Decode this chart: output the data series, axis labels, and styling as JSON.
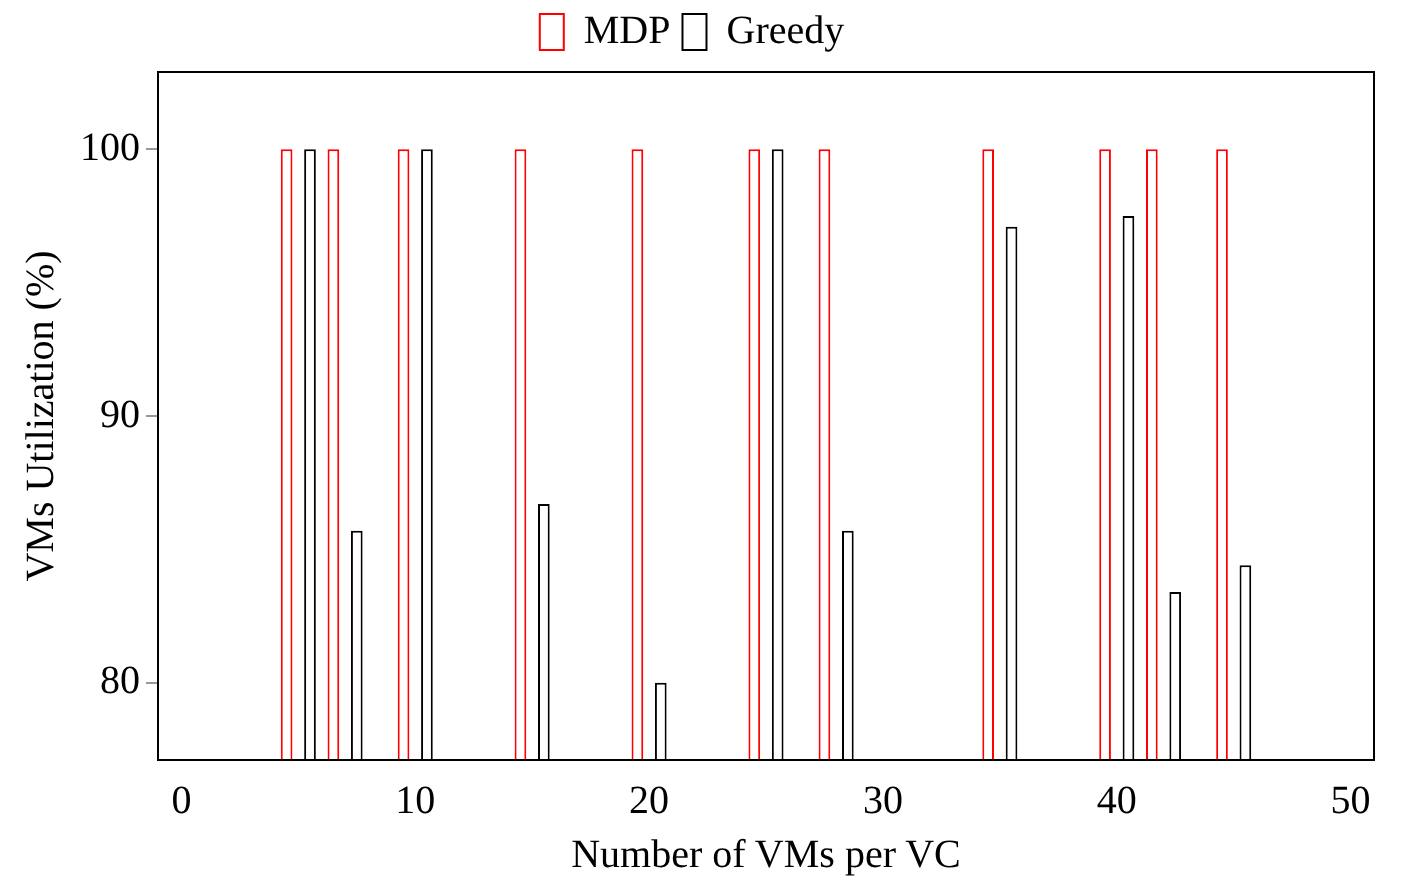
{
  "chart_data": {
    "type": "bar",
    "xlabel": "Number of VMs per VC",
    "ylabel": "VMs Utilization (%)",
    "x": [
      5,
      7,
      10,
      15,
      20,
      25,
      28,
      35,
      40,
      42,
      45
    ],
    "series": [
      {
        "name": "MDP",
        "color": "#ff0000",
        "values": [
          100,
          100,
          100,
          100,
          100,
          100,
          100,
          100,
          100,
          100,
          100
        ]
      },
      {
        "name": "Greedy",
        "color": "#000000",
        "values": [
          100,
          85.7,
          100,
          86.7,
          80,
          100,
          85.7,
          97.1,
          97.5,
          83.4,
          84.4
        ]
      }
    ],
    "xlim": [
      -1,
      51
    ],
    "xticks": [
      0,
      10,
      20,
      30,
      40,
      50
    ],
    "ylim": [
      77.1,
      102.9
    ],
    "yticks": [
      80,
      90,
      100
    ],
    "grid": false,
    "legend": "top"
  }
}
